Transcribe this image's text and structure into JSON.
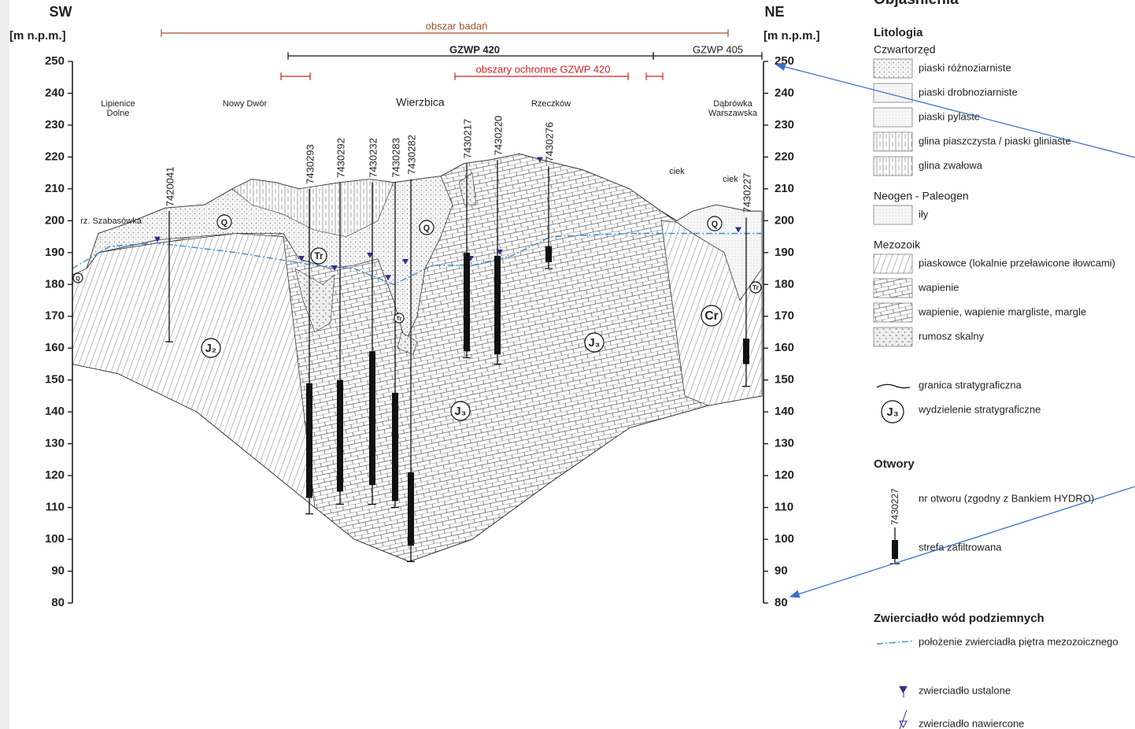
{
  "header": {
    "left_dir": "SW",
    "right_dir": "NE",
    "left_unit": "[m n.p.m.]",
    "right_unit": "[m n.p.m.]"
  },
  "axis": {
    "ticks": [
      250,
      240,
      230,
      220,
      210,
      200,
      190,
      180,
      170,
      160,
      150,
      140,
      130,
      120,
      110,
      100,
      90,
      80
    ]
  },
  "zones": {
    "study_area": "obszar badań",
    "gzwp420": "GZWP 420",
    "gzwp405": "GZWP 405",
    "protection": "obszary ochronne GZWP 420"
  },
  "places": [
    [
      "Lipienice",
      "Dolne"
    ],
    [
      "Nowy Dwór"
    ],
    [
      "Wierzbica"
    ],
    [
      "Rzeczków"
    ],
    [
      "Dąbrówka",
      "Warszawska"
    ],
    [
      "ciek"
    ],
    [
      "ciek"
    ],
    [
      "rz. Szabasówka"
    ]
  ],
  "boreholes": [
    "7420041",
    "7430293",
    "7430292",
    "7430232",
    "7430283",
    "7430282",
    "7430217",
    "7430220",
    "7430276",
    "7430227"
  ],
  "units": [
    "Q",
    "Q",
    "Q",
    "Q",
    "Tr",
    "Tr",
    "Tr",
    "J₂",
    "J₃",
    "J₃",
    "Cr"
  ],
  "legend": {
    "title": "Objaśnienia",
    "lithology": {
      "title": "Litologia",
      "groups": [
        {
          "title": "Czwartorzęd",
          "items": [
            "piaski różnoziarniste",
            "piaski drobnoziarniste",
            "piaski pylaste",
            "glina piaszczysta / piaski gliniaste",
            "glina zwałowa"
          ]
        },
        {
          "title": "Neogen - Paleogen",
          "items": [
            "iły"
          ]
        },
        {
          "title": "Mezozoik",
          "items": [
            "piaskowce (lokalnie przeławicone iłowcami)",
            "wapienie",
            "wapienie, wapienie margliste, margle",
            "rumosz skalny"
          ]
        }
      ]
    },
    "symbols": [
      "granica stratygraficzna",
      "wydzielenie stratygraficzne"
    ],
    "symbol_example": "J₃",
    "boreholes": {
      "title": "Otwory",
      "items": [
        "nr otworu (zgodny z Bankiem HYDRO)",
        "strefa zafiltrowana"
      ],
      "example": "7430227"
    },
    "water": {
      "title": "Zwierciadło wód podziemnych",
      "items": [
        "położenie zwierciadła piętra mezozoicznego",
        "zwierciadło ustalone",
        "zwierciadło nawiercone"
      ]
    }
  }
}
